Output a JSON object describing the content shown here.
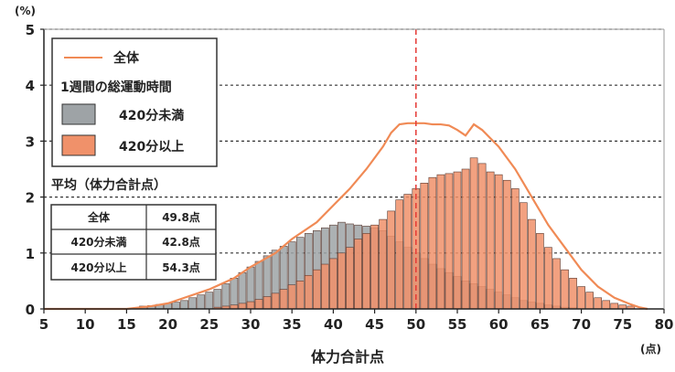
{
  "chart_data": {
    "type": "bar",
    "xlabel": "体力合計点",
    "x_unit": "(点)",
    "y_unit": "(%)",
    "xlim": [
      5,
      80
    ],
    "ylim": [
      0,
      5
    ],
    "x_ticks": [
      5,
      10,
      15,
      20,
      25,
      30,
      35,
      40,
      45,
      50,
      55,
      60,
      65,
      70,
      75,
      80
    ],
    "y_ticks": [
      0,
      1,
      2,
      3,
      4,
      5
    ],
    "grid": "horizontal-dashed",
    "reference_line": {
      "x": 50,
      "color": "#e53935"
    },
    "legend": {
      "line_label": "全体",
      "group_title": "1週間の総運動時間",
      "items": [
        {
          "label": "420分未満",
          "color": "#9ea3a6"
        },
        {
          "label": "420分以上",
          "color": "#f0916a"
        }
      ]
    },
    "averages": {
      "title": "平均（体力合計点）",
      "rows": [
        {
          "label": "全体",
          "value": "49.8点"
        },
        {
          "label": "420分未満",
          "value": "42.8点"
        },
        {
          "label": "420分以上",
          "value": "54.3点"
        }
      ]
    },
    "series": [
      {
        "key": "under420",
        "color": "#9ea3a6",
        "x": [
          17,
          18,
          19,
          20,
          21,
          22,
          23,
          24,
          25,
          26,
          27,
          28,
          29,
          30,
          31,
          32,
          33,
          34,
          35,
          36,
          37,
          38,
          39,
          40,
          41,
          42,
          43,
          44,
          45,
          46,
          47,
          48,
          49,
          50,
          51,
          52,
          53,
          54,
          55,
          56,
          57,
          58,
          59,
          60,
          61,
          62,
          63,
          64,
          65,
          66,
          67,
          68,
          69
        ],
        "values": [
          0.05,
          0.06,
          0.08,
          0.1,
          0.12,
          0.15,
          0.2,
          0.25,
          0.3,
          0.35,
          0.45,
          0.55,
          0.65,
          0.75,
          0.85,
          0.95,
          1.05,
          1.12,
          1.2,
          1.28,
          1.35,
          1.4,
          1.45,
          1.5,
          1.55,
          1.52,
          1.5,
          1.48,
          1.45,
          1.4,
          1.3,
          1.2,
          1.1,
          1.0,
          0.9,
          0.8,
          0.72,
          0.65,
          0.58,
          0.5,
          0.45,
          0.4,
          0.35,
          0.3,
          0.25,
          0.2,
          0.15,
          0.12,
          0.1,
          0.07,
          0.05,
          0.03,
          0.02
        ]
      },
      {
        "key": "over420",
        "color": "#f0916a",
        "x": [
          26,
          27,
          28,
          29,
          30,
          31,
          32,
          33,
          34,
          35,
          36,
          37,
          38,
          39,
          40,
          41,
          42,
          43,
          44,
          45,
          46,
          47,
          48,
          49,
          50,
          51,
          52,
          53,
          54,
          55,
          56,
          57,
          58,
          59,
          60,
          61,
          62,
          63,
          64,
          65,
          66,
          67,
          68,
          69,
          70,
          71,
          72,
          73,
          74,
          75,
          76
        ],
        "values": [
          0.03,
          0.05,
          0.07,
          0.1,
          0.13,
          0.17,
          0.22,
          0.28,
          0.35,
          0.43,
          0.5,
          0.6,
          0.7,
          0.8,
          0.9,
          1.0,
          1.1,
          1.25,
          1.35,
          1.5,
          1.6,
          1.75,
          1.95,
          2.05,
          2.15,
          2.25,
          2.35,
          2.4,
          2.42,
          2.45,
          2.5,
          2.7,
          2.6,
          2.45,
          2.4,
          2.3,
          2.15,
          1.9,
          1.6,
          1.35,
          1.1,
          0.9,
          0.7,
          0.55,
          0.4,
          0.3,
          0.2,
          0.15,
          0.1,
          0.07,
          0.05
        ]
      },
      {
        "key": "overall",
        "type": "line",
        "color": "#f08a55",
        "x": [
          5,
          15,
          18,
          20,
          22,
          25,
          28,
          30,
          33,
          35,
          38,
          40,
          42,
          44,
          46,
          47,
          48,
          49,
          50,
          51,
          52,
          53,
          54,
          55,
          56,
          57,
          58,
          60,
          62,
          64,
          66,
          68,
          70,
          72,
          74,
          76,
          77,
          78
        ],
        "values": [
          0,
          0,
          0.05,
          0.1,
          0.2,
          0.35,
          0.55,
          0.75,
          1.0,
          1.25,
          1.55,
          1.85,
          2.15,
          2.5,
          2.9,
          3.15,
          3.3,
          3.32,
          3.32,
          3.32,
          3.3,
          3.3,
          3.28,
          3.2,
          3.1,
          3.3,
          3.2,
          2.9,
          2.5,
          2.0,
          1.5,
          1.1,
          0.7,
          0.4,
          0.2,
          0.08,
          0.03,
          0
        ]
      }
    ]
  }
}
